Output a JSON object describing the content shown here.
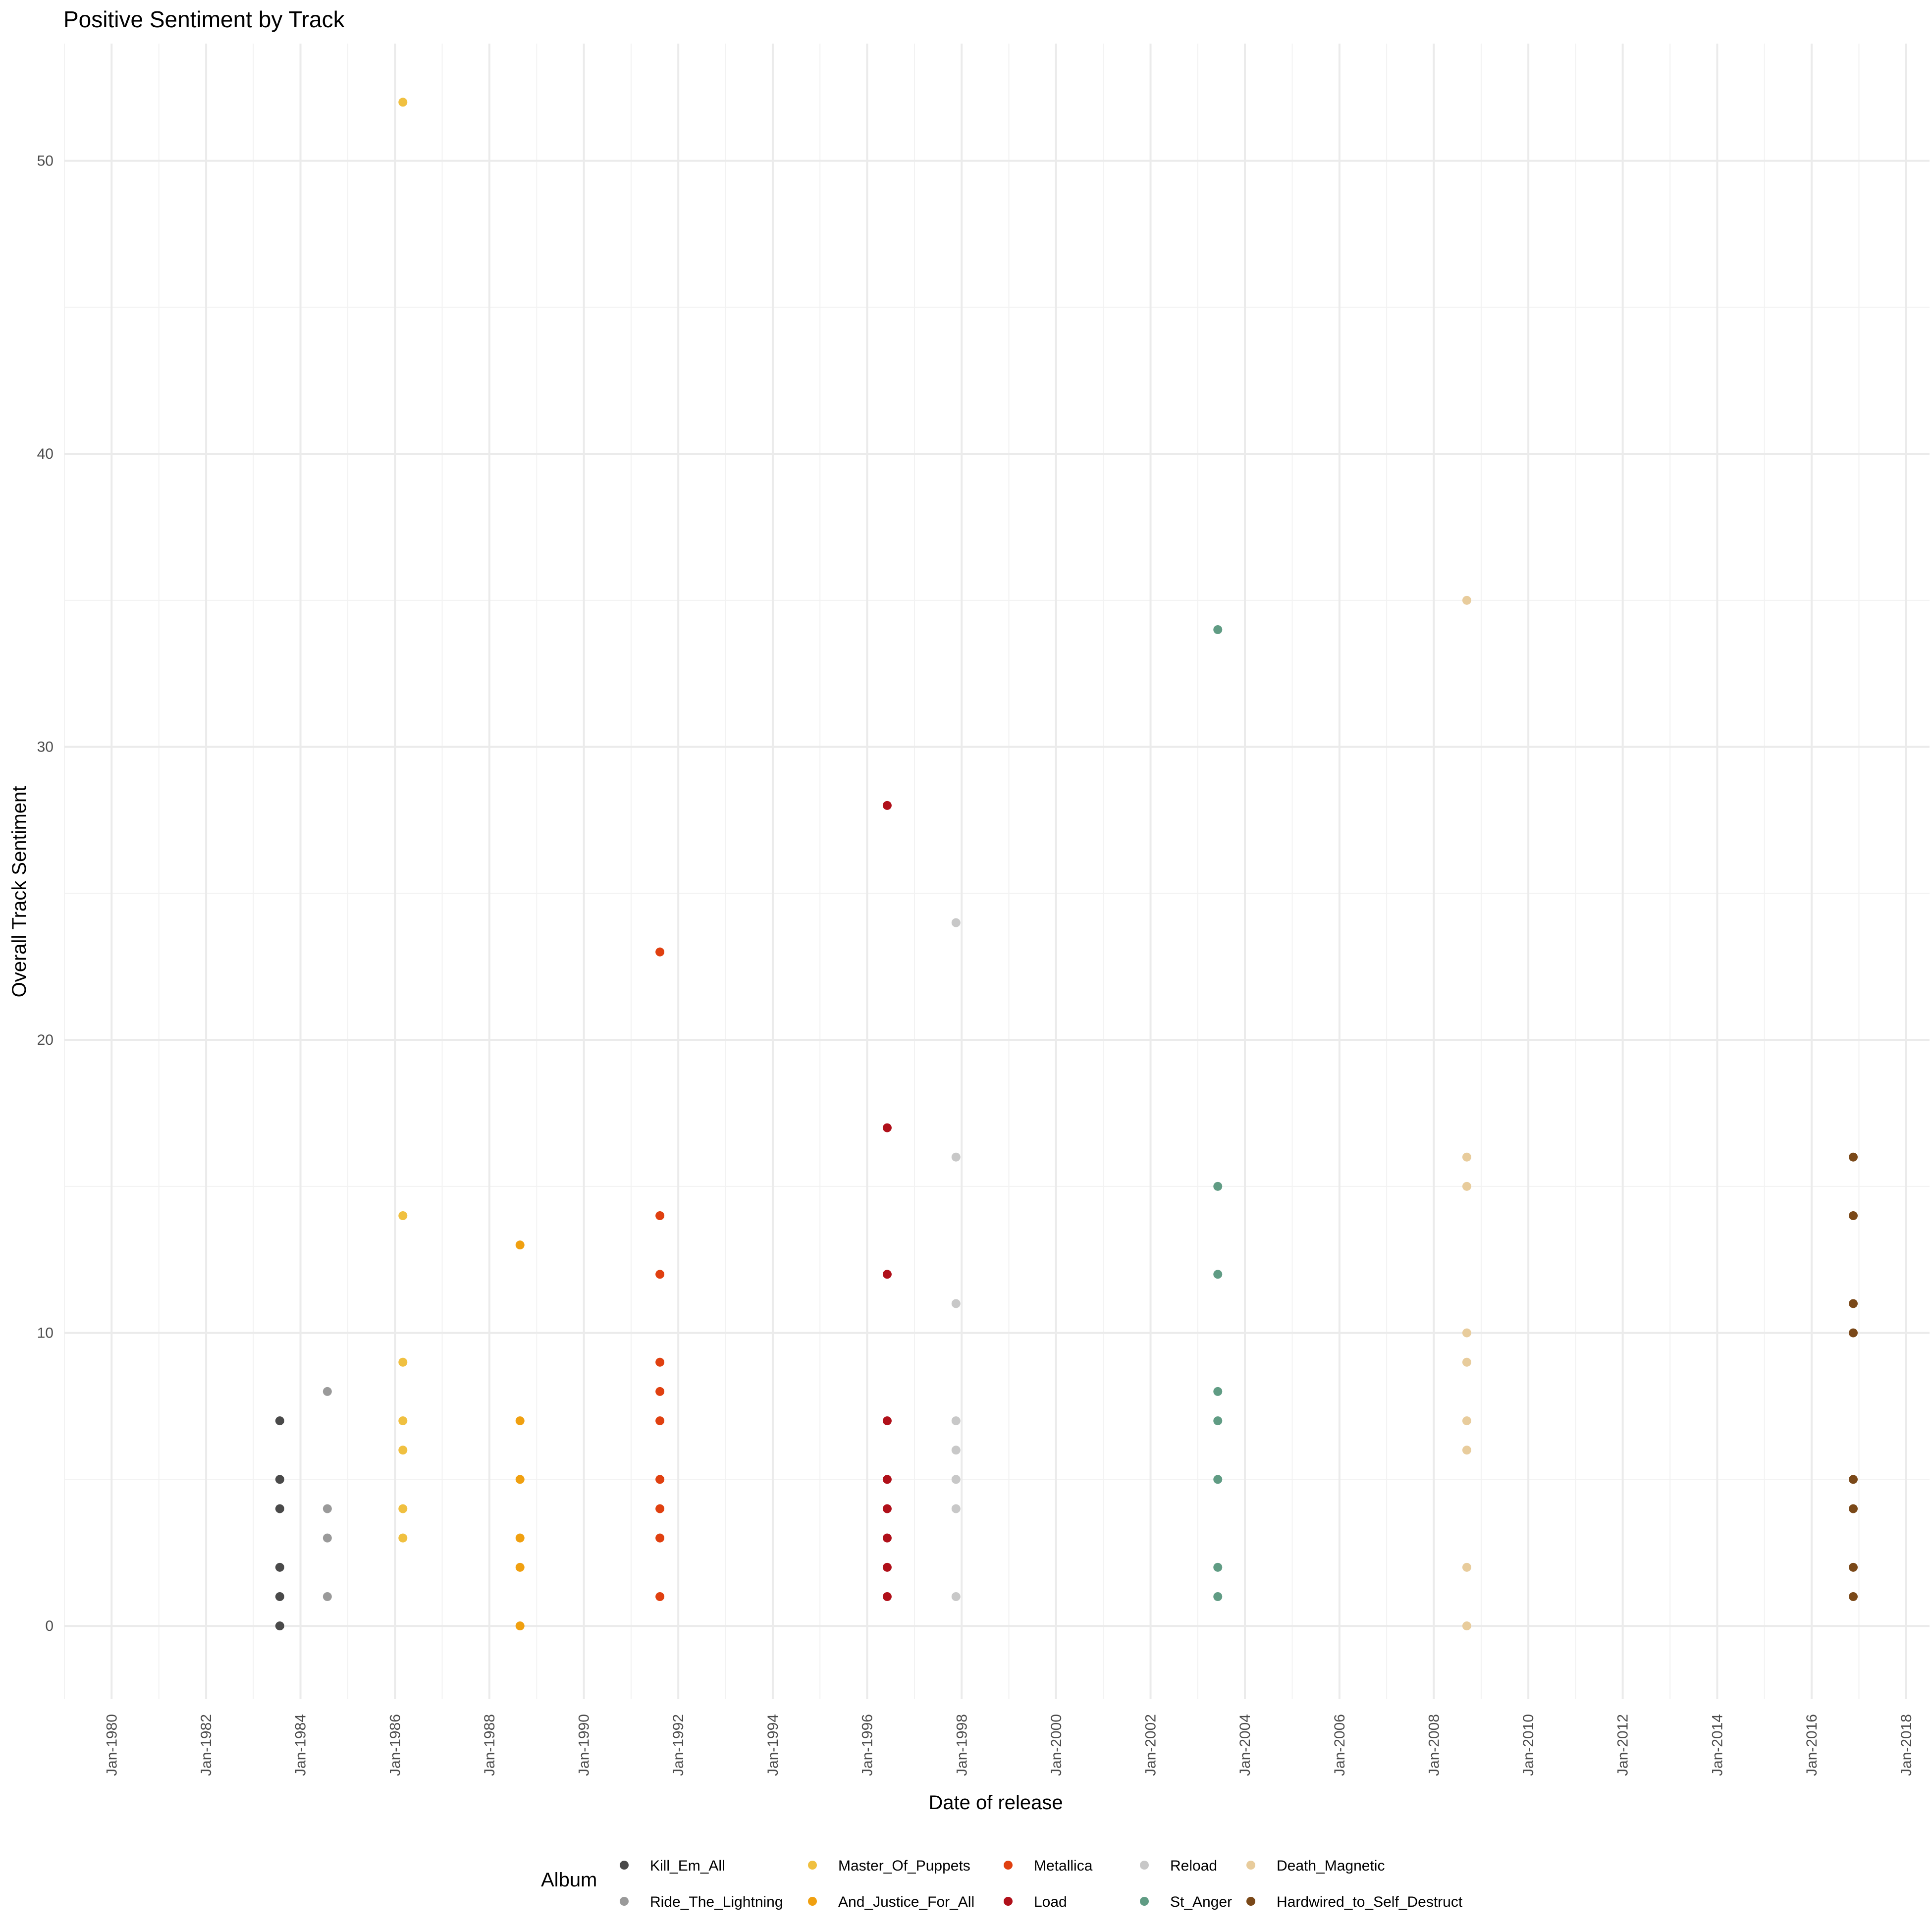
{
  "chart_data": {
    "type": "scatter",
    "title": "Positive Sentiment by Track",
    "xlabel": "Date of release",
    "ylabel": "Overall Track Sentiment",
    "x_type": "date",
    "xlim": [
      "1979-01-01",
      "2018-07-01"
    ],
    "ylim": [
      -2.5,
      54
    ],
    "x_ticks": [
      {
        "date": "1980-01-01",
        "label": "Jan-1980"
      },
      {
        "date": "1982-01-01",
        "label": "Jan-1982"
      },
      {
        "date": "1984-01-01",
        "label": "Jan-1984"
      },
      {
        "date": "1986-01-01",
        "label": "Jan-1986"
      },
      {
        "date": "1988-01-01",
        "label": "Jan-1988"
      },
      {
        "date": "1990-01-01",
        "label": "Jan-1990"
      },
      {
        "date": "1992-01-01",
        "label": "Jan-1992"
      },
      {
        "date": "1994-01-01",
        "label": "Jan-1994"
      },
      {
        "date": "1996-01-01",
        "label": "Jan-1996"
      },
      {
        "date": "1998-01-01",
        "label": "Jan-1998"
      },
      {
        "date": "2000-01-01",
        "label": "Jan-2000"
      },
      {
        "date": "2002-01-01",
        "label": "Jan-2002"
      },
      {
        "date": "2004-01-01",
        "label": "Jan-2004"
      },
      {
        "date": "2006-01-01",
        "label": "Jan-2006"
      },
      {
        "date": "2008-01-01",
        "label": "Jan-2008"
      },
      {
        "date": "2010-01-01",
        "label": "Jan-2010"
      },
      {
        "date": "2012-01-01",
        "label": "Jan-2012"
      },
      {
        "date": "2014-01-01",
        "label": "Jan-2014"
      },
      {
        "date": "2016-01-01",
        "label": "Jan-2016"
      },
      {
        "date": "2018-01-01",
        "label": "Jan-2018"
      }
    ],
    "y_ticks": [
      {
        "value": 0,
        "label": "0"
      },
      {
        "value": 10,
        "label": "10"
      },
      {
        "value": 20,
        "label": "20"
      },
      {
        "value": 30,
        "label": "30"
      },
      {
        "value": 40,
        "label": "40"
      },
      {
        "value": 50,
        "label": "50"
      }
    ],
    "y_minor": [
      5,
      15,
      25,
      35,
      45
    ],
    "grid": true,
    "legend": {
      "title": "Album",
      "position": "bottom"
    },
    "series": [
      {
        "name": "Kill_Em_All",
        "color": "#4a4a4a",
        "date": "1983-07-25",
        "y": [
          0,
          1,
          2,
          4,
          5,
          7
        ]
      },
      {
        "name": "Ride_The_Lightning",
        "color": "#9a9a9a",
        "date": "1984-07-27",
        "y": [
          1,
          3,
          4,
          8
        ]
      },
      {
        "name": "Master_Of_Puppets",
        "color": "#f0c040",
        "date": "1986-03-03",
        "y": [
          3,
          4,
          6,
          7,
          9,
          14,
          52
        ]
      },
      {
        "name": "And_Justice_For_All",
        "color": "#f0a010",
        "date": "1988-08-25",
        "y": [
          0,
          2,
          3,
          5,
          7,
          13
        ]
      },
      {
        "name": "Metallica",
        "color": "#e04010",
        "date": "1991-08-12",
        "y": [
          1,
          3,
          4,
          5,
          7,
          8,
          9,
          12,
          14,
          23
        ]
      },
      {
        "name": "Load",
        "color": "#b0101a",
        "date": "1996-06-04",
        "y": [
          1,
          2,
          3,
          4,
          5,
          7,
          12,
          17,
          28
        ]
      },
      {
        "name": "Reload",
        "color": "#c8c8c8",
        "date": "1997-11-18",
        "y": [
          1,
          4,
          5,
          6,
          7,
          11,
          16,
          24
        ]
      },
      {
        "name": "St_Anger",
        "color": "#609c84",
        "date": "2003-06-05",
        "y": [
          1,
          2,
          5,
          7,
          8,
          12,
          15,
          34
        ]
      },
      {
        "name": "Death_Magnetic",
        "color": "#e8cc9c",
        "date": "2008-09-12",
        "y": [
          0,
          2,
          6,
          7,
          9,
          10,
          15,
          16,
          35
        ]
      },
      {
        "name": "Hardwired_to_Self_Destruct",
        "color": "#7a4818",
        "date": "2016-11-18",
        "y": [
          1,
          2,
          4,
          5,
          10,
          11,
          14,
          16
        ]
      }
    ]
  }
}
